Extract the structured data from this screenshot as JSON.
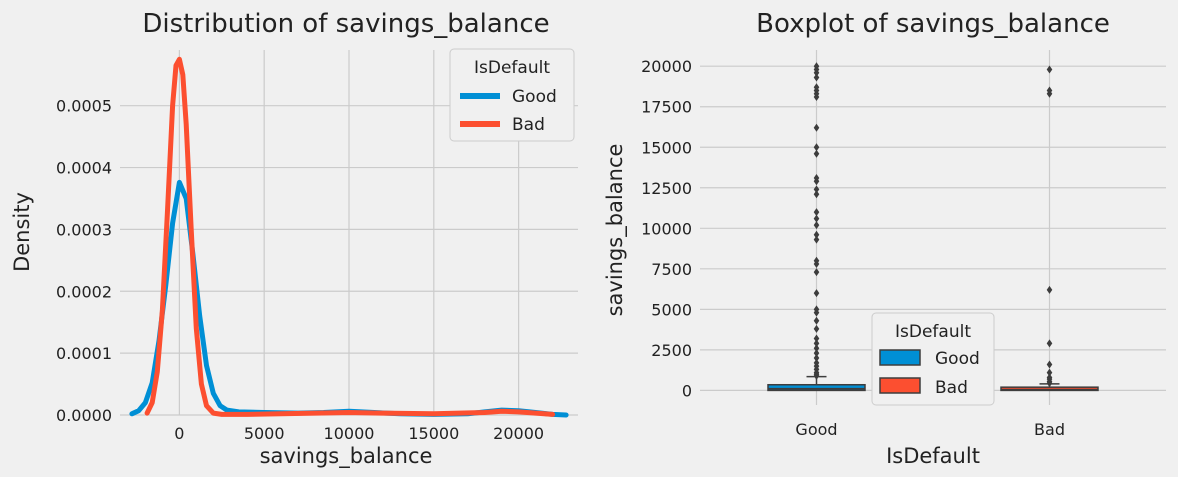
{
  "chart_data": [
    {
      "type": "line",
      "title": "Distribution of savings_balance",
      "xlabel": "savings_balance",
      "ylabel": "Density",
      "xlim": [
        -3500,
        23500
      ],
      "ylim": [
        0,
        0.00059
      ],
      "xticks": [
        0,
        5000,
        10000,
        15000,
        20000
      ],
      "xtick_labels": [
        "0",
        "5000",
        "10000",
        "15000",
        "20000"
      ],
      "yticks": [
        0,
        0.0001,
        0.0002,
        0.0003,
        0.0004,
        0.0005
      ],
      "ytick_labels": [
        "0.0000",
        "0.0001",
        "0.0002",
        "0.0003",
        "0.0004",
        "0.0005"
      ],
      "grid": true,
      "legend": {
        "title": "IsDefault",
        "placement": "top-right"
      },
      "series": [
        {
          "name": "Good",
          "color": "#008fd5",
          "x": [
            -2800,
            -2400,
            -2000,
            -1600,
            -1200,
            -800,
            -400,
            0,
            400,
            800,
            1200,
            1600,
            2000,
            2400,
            2800,
            3500,
            5000,
            7000,
            8500,
            10000,
            11500,
            13000,
            15000,
            17000,
            18000,
            19000,
            20000,
            21000,
            22000,
            22800
          ],
          "y": [
            2e-06,
            7e-06,
            2e-05,
            5.2e-05,
            0.00012,
            0.00021,
            0.00031,
            0.000376,
            0.00035,
            0.00026,
            0.00016,
            8e-05,
            3.5e-05,
            1.5e-05,
            8e-06,
            5e-06,
            4e-06,
            3e-06,
            4e-06,
            6e-06,
            4e-06,
            2e-06,
            1e-06,
            2e-06,
            5e-06,
            8e-06,
            7e-06,
            4e-06,
            1e-06,
            0.0
          ]
        },
        {
          "name": "Bad",
          "color": "#fc4f30",
          "x": [
            -1900,
            -1600,
            -1300,
            -1000,
            -700,
            -400,
            -200,
            0,
            200,
            400,
            700,
            1000,
            1300,
            1600,
            2000,
            2500,
            4000,
            6000,
            8000,
            10000,
            12000,
            15000,
            18000,
            19000,
            20000,
            21000,
            22000
          ],
          "y": [
            3e-06,
            2e-05,
            7e-05,
            0.00017,
            0.00033,
            0.0005,
            0.000565,
            0.000575,
            0.00055,
            0.00047,
            0.0003,
            0.00014,
            5e-05,
            1.5e-05,
            3e-06,
            1e-06,
            1e-06,
            2e-06,
            3e-06,
            4e-06,
            3e-06,
            2e-06,
            4e-06,
            6e-06,
            5e-06,
            3e-06,
            1e-06
          ]
        }
      ]
    },
    {
      "type": "box",
      "title": "Boxplot of savings_balance",
      "xlabel": "IsDefault",
      "ylabel": "savings_balance",
      "categories": [
        "Good",
        "Bad"
      ],
      "ylim": [
        -900,
        21000
      ],
      "yticks": [
        0,
        2500,
        5000,
        7500,
        10000,
        12500,
        15000,
        17500,
        20000
      ],
      "ytick_labels": [
        "0",
        "2500",
        "5000",
        "7500",
        "10000",
        "12500",
        "15000",
        "17500",
        "20000"
      ],
      "grid": true,
      "legend": {
        "title": "IsDefault",
        "placement": "lower-center"
      },
      "series": [
        {
          "name": "Good",
          "color": "#008fd5",
          "q1": 0,
          "median": 100,
          "q3": 350,
          "whisker_low": 0,
          "whisker_high": 850,
          "outliers": [
            900,
            1000,
            1100,
            1300,
            1500,
            1700,
            2000,
            2300,
            2600,
            2900,
            3200,
            3800,
            4300,
            4800,
            5000,
            6000,
            7300,
            7800,
            8000,
            9300,
            9600,
            10200,
            10600,
            11000,
            12100,
            12400,
            12900,
            13100,
            14600,
            15000,
            16200,
            18100,
            18300,
            18500,
            18700,
            19300,
            19600,
            19800,
            20000
          ]
        },
        {
          "name": "Bad",
          "color": "#fc4f30",
          "q1": 0,
          "median": 50,
          "q3": 200,
          "whisker_low": 0,
          "whisker_high": 400,
          "outliers": [
            450,
            550,
            700,
            800,
            1100,
            1600,
            2900,
            6200,
            18300,
            18500,
            19800
          ]
        }
      ]
    }
  ]
}
